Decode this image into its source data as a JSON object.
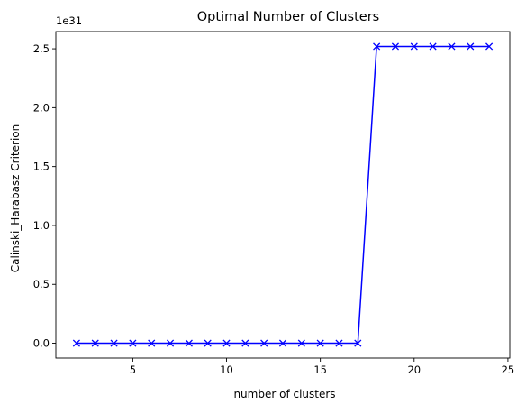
{
  "chart_data": {
    "type": "line",
    "title": "Optimal Number of Clusters",
    "xlabel": "number of clusters",
    "ylabel": "Calinski_Harabasz Criterion",
    "y_multiplier": "1e31",
    "x": [
      2,
      3,
      4,
      5,
      6,
      7,
      8,
      9,
      10,
      11,
      12,
      13,
      14,
      15,
      16,
      17,
      18,
      19,
      20,
      21,
      22,
      23,
      24
    ],
    "series": [
      {
        "values": [
          0,
          0,
          0,
          0,
          0,
          0,
          0,
          0,
          0,
          0,
          0,
          0,
          0,
          0,
          0,
          0,
          2.52,
          2.52,
          2.52,
          2.52,
          2.52,
          2.52,
          2.52
        ],
        "color": "#0000ff",
        "marker": "x"
      }
    ],
    "xlim": [
      0.9,
      25.1
    ],
    "ylim": [
      -0.126,
      2.646
    ],
    "xticks": [
      5,
      10,
      15,
      20,
      25
    ],
    "xtick_labels": [
      "5",
      "10",
      "15",
      "20",
      "25"
    ],
    "yticks": [
      0,
      0.5,
      1.0,
      1.5,
      2.0,
      2.5
    ],
    "ytick_labels": [
      "0.0",
      "0.5",
      "1.0",
      "1.5",
      "2.0",
      "2.5"
    ],
    "grid": false,
    "axes_color": "#000000"
  }
}
